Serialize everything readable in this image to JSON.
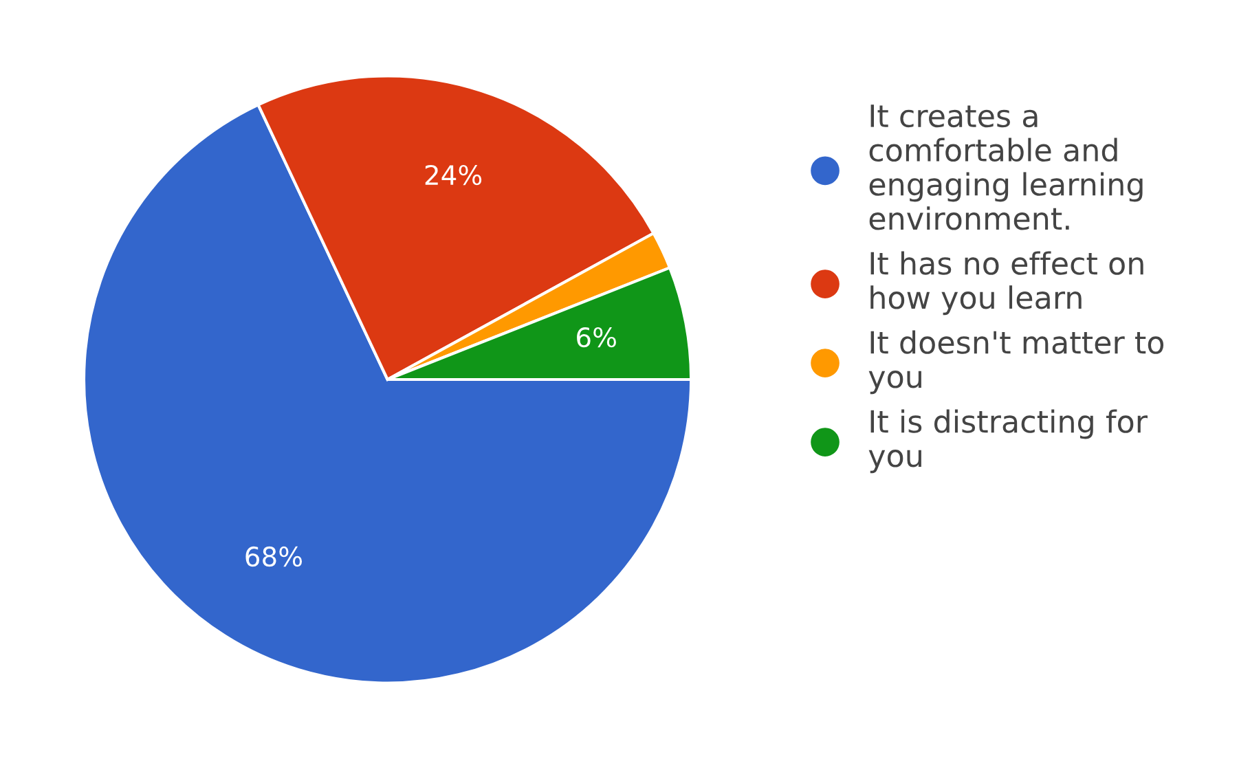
{
  "chart_data": {
    "type": "pie",
    "categories": [
      "It creates a\ncomfortable and\nengaging learning\nenvironment.",
      "It has no effect on\nhow you learn",
      "It doesn't matter to\nyou",
      "It is distracting for\nyou"
    ],
    "values": [
      68,
      24,
      2,
      6
    ],
    "value_labels": [
      "68%",
      "24%",
      null,
      "6%"
    ],
    "colors": [
      "#3366cc",
      "#dc3912",
      "#ff9900",
      "#109618"
    ],
    "legend": "right"
  }
}
